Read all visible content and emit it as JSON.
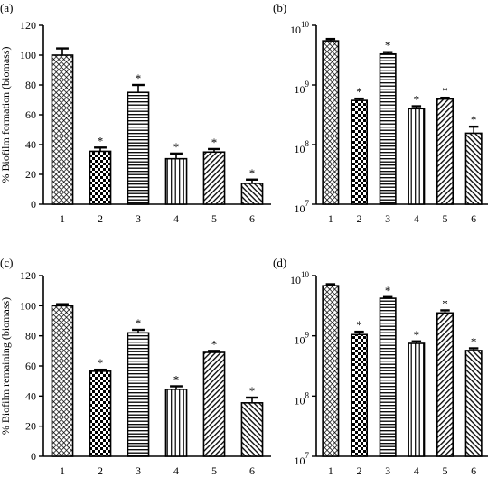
{
  "chart_data": [
    {
      "panel": "(a)",
      "type": "bar",
      "yscale": "linear",
      "ylabel": "% Biofilm formation (biomass)",
      "ylim": [
        0,
        120
      ],
      "yticks": [
        0,
        20,
        40,
        60,
        80,
        100,
        120
      ],
      "categories": [
        "1",
        "2",
        "3",
        "4",
        "5",
        "6"
      ],
      "values": [
        100,
        35.5,
        75,
        30.5,
        35,
        14
      ],
      "errors": [
        4.5,
        2.5,
        5,
        3.5,
        2,
        2.5
      ],
      "significance": [
        "",
        "*",
        "*",
        "*",
        "*",
        "*"
      ],
      "patterns": [
        "crosshatch",
        "checker",
        "horizontal",
        "vertical",
        "diag-right",
        "diag-left"
      ]
    },
    {
      "panel": "(b)",
      "type": "bar",
      "yscale": "log",
      "ylabel": "",
      "ylim": [
        10000000,
        10000000000
      ],
      "yticks": [
        10000000,
        100000000,
        1000000000,
        10000000000
      ],
      "ytick_labels": [
        {
          "base": "10",
          "exp": "7"
        },
        {
          "base": "10",
          "exp": "8"
        },
        {
          "base": "10",
          "exp": "9"
        },
        {
          "base": "10",
          "exp": "10"
        }
      ],
      "categories": [
        "1",
        "2",
        "3",
        "4",
        "5",
        "6"
      ],
      "values": [
        5500000000,
        550000000,
        3300000000,
        400000000,
        580000000,
        155000000
      ],
      "errors": [
        400000000,
        40000000,
        250000000,
        40000000,
        30000000,
        45000000
      ],
      "significance": [
        "",
        "*",
        "*",
        "*",
        "*",
        "*"
      ],
      "patterns": [
        "crosshatch",
        "checker",
        "horizontal",
        "vertical",
        "diag-right",
        "diag-left"
      ]
    },
    {
      "panel": "(c)",
      "type": "bar",
      "yscale": "linear",
      "ylabel": "% Biofilm remaining (biomass)",
      "ylim": [
        0,
        120
      ],
      "yticks": [
        0,
        20,
        40,
        60,
        80,
        100,
        120
      ],
      "categories": [
        "1",
        "2",
        "3",
        "4",
        "5",
        "6"
      ],
      "values": [
        100,
        56.5,
        82,
        44.5,
        69,
        35.5
      ],
      "errors": [
        1,
        1,
        2,
        2,
        1,
        3.5
      ],
      "significance": [
        "",
        "*",
        "*",
        "*",
        "*",
        "*"
      ],
      "patterns": [
        "crosshatch",
        "checker",
        "horizontal",
        "vertical",
        "diag-right",
        "diag-left"
      ]
    },
    {
      "panel": "(d)",
      "type": "bar",
      "yscale": "log",
      "ylabel": "",
      "ylim": [
        10000000,
        10000000000
      ],
      "yticks": [
        10000000,
        100000000,
        1000000000,
        10000000000
      ],
      "ytick_labels": [
        {
          "base": "10",
          "exp": "7"
        },
        {
          "base": "10",
          "exp": "8"
        },
        {
          "base": "10",
          "exp": "9"
        },
        {
          "base": "10",
          "exp": "10"
        }
      ],
      "categories": [
        "1",
        "2",
        "3",
        "4",
        "5",
        "6"
      ],
      "values": [
        6800000000,
        1050000000,
        4200000000,
        750000000,
        2400000000,
        570000000
      ],
      "errors": [
        400000000,
        120000000,
        200000000,
        60000000,
        250000000,
        50000000
      ],
      "significance": [
        "",
        "*",
        "*",
        "*",
        "*",
        "*"
      ],
      "patterns": [
        "crosshatch",
        "checker",
        "horizontal",
        "vertical",
        "diag-right",
        "diag-left"
      ]
    }
  ]
}
